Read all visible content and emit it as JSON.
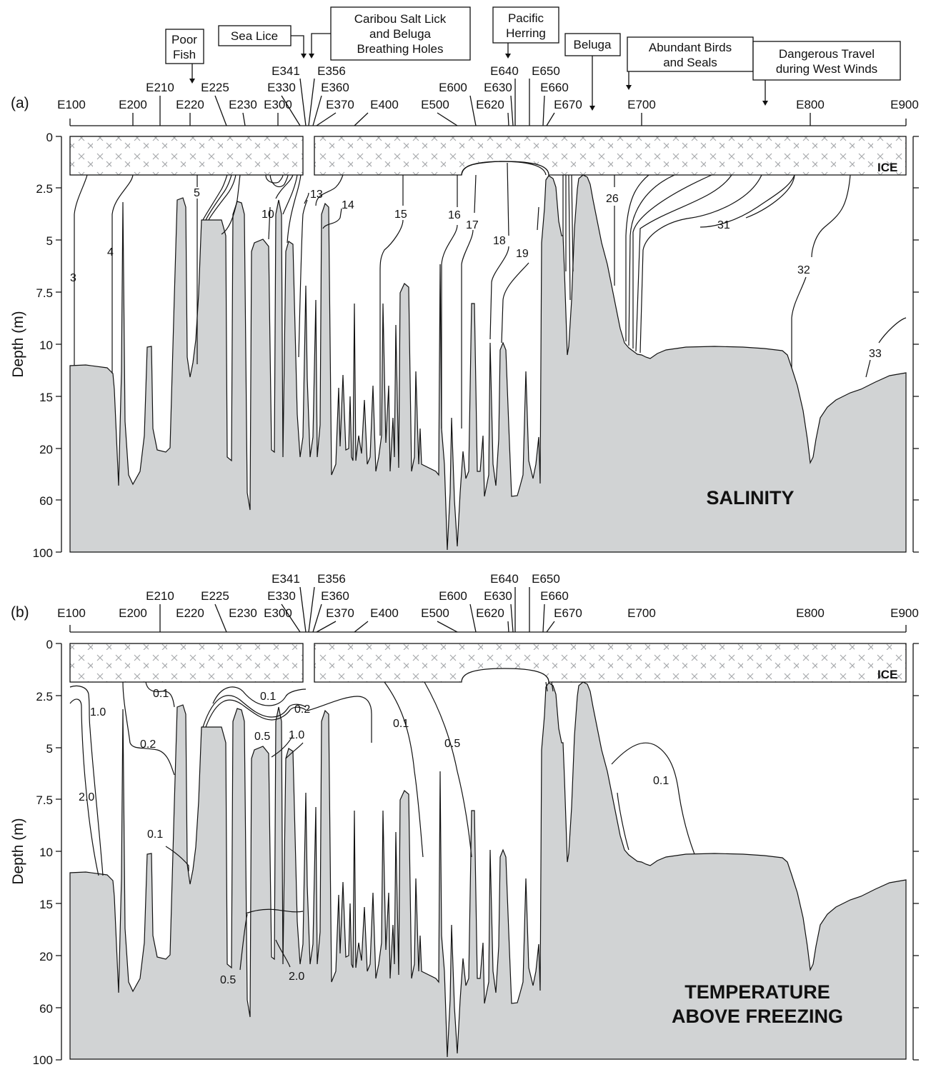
{
  "figure": {
    "stations_upper": [
      "E100",
      "E200",
      "E210",
      "E220",
      "E225",
      "E230",
      "E300",
      "E330",
      "E341",
      "E356",
      "E360",
      "E370",
      "E400",
      "E500",
      "E600",
      "E620",
      "E630",
      "E640",
      "E650",
      "E660",
      "E670",
      "E700",
      "E800",
      "E900"
    ],
    "stations_lower": [
      "E100",
      "E200",
      "E210",
      "E220",
      "E225",
      "E230",
      "E300",
      "E330",
      "E341",
      "E356",
      "E360",
      "E370",
      "E400",
      "E500",
      "E600",
      "E620",
      "E630",
      "E640",
      "E650",
      "E660",
      "E670",
      "E700",
      "E800",
      "E900"
    ],
    "y_ticks": [
      "0",
      "2.5",
      "5",
      "7.5",
      "10",
      "15",
      "20",
      "60",
      "100"
    ],
    "ylabel": "Depth (m)",
    "ice_label": "ICE",
    "colors": {
      "seafloor": "#d1d3d4",
      "line": "#111111",
      "ice_x": "#a7a9ac"
    }
  },
  "chart_data": [
    {
      "type": "contour-section",
      "panel": "(a)",
      "title": "SALINITY",
      "ylabel": "Depth (m)",
      "stations": [
        "E100",
        "E200",
        "E210",
        "E220",
        "E225",
        "E230",
        "E300",
        "E330",
        "E341",
        "E356",
        "E360",
        "E370",
        "E400",
        "E500",
        "E600",
        "E620",
        "E630",
        "E640",
        "E650",
        "E660",
        "E670",
        "E700",
        "E800",
        "E900"
      ],
      "depth_ticks": [
        0,
        2.5,
        5,
        7.5,
        10,
        15,
        20,
        60,
        100
      ],
      "contour_labels": [
        "3",
        "4",
        "5",
        "10",
        "13",
        "14",
        "15",
        "16",
        "17",
        "18",
        "19",
        "26",
        "31",
        "32",
        "33"
      ],
      "annotations": [
        "Poor Fish",
        "Sea Lice",
        "Caribou Salt Lick and Beluga Breathing Holes",
        "Pacific Herring",
        "Beluga",
        "Abundant Birds and Seals",
        "Dangerous Travel during West Winds"
      ]
    },
    {
      "type": "contour-section",
      "panel": "(b)",
      "title": "TEMPERATURE ABOVE FREEZING",
      "ylabel": "Depth (m)",
      "stations": [
        "E100",
        "E200",
        "E210",
        "E220",
        "E225",
        "E230",
        "E300",
        "E330",
        "E341",
        "E356",
        "E360",
        "E370",
        "E400",
        "E500",
        "E600",
        "E620",
        "E630",
        "E640",
        "E650",
        "E660",
        "E670",
        "E700",
        "E800",
        "E900"
      ],
      "depth_ticks": [
        0,
        2.5,
        5,
        7.5,
        10,
        15,
        20,
        60,
        100
      ],
      "contour_labels": [
        "0.1",
        "0.1",
        "0.1",
        "0.1",
        "0.1",
        "0.2",
        "0.2",
        "0.5",
        "0.5",
        "0.5",
        "1.0",
        "1.0",
        "2.0",
        "2.0"
      ]
    }
  ],
  "panel_a": {
    "letter": "(a)",
    "title": "SALINITY",
    "stations": {
      "E100": "E100",
      "E200": "E200",
      "E210": "E210",
      "E220": "E220",
      "E225": "E225",
      "E230": "E230",
      "E300": "E300",
      "E330": "E330",
      "E341": "E341",
      "E356": "E356",
      "E360": "E360",
      "E370": "E370",
      "E400": "E400",
      "E500": "E500",
      "E600": "E600",
      "E620": "E620",
      "E630": "E630",
      "E640": "E640",
      "E650": "E650",
      "E660": "E660",
      "E670": "E670",
      "E700": "E700",
      "E800": "E800",
      "E900": "E900"
    },
    "labels": {
      "s3": "3",
      "s4": "4",
      "s5": "5",
      "s10": "10",
      "s13": "13",
      "s14": "14",
      "s15": "15",
      "s16": "16",
      "s17": "17",
      "s18": "18",
      "s19": "19",
      "s26": "26",
      "s31": "31",
      "s32": "32",
      "s33": "33"
    },
    "annotations": {
      "poor_fish_1": "Poor",
      "poor_fish_2": "Fish",
      "sea_lice": "Sea Lice",
      "caribou_1": "Caribou Salt Lick",
      "caribou_2": "and Beluga",
      "caribou_3": "Breathing Holes",
      "herring_1": "Pacific",
      "herring_2": "Herring",
      "beluga": "Beluga",
      "birds_1": "Abundant Birds",
      "birds_2": "and Seals",
      "travel_1": "Dangerous Travel",
      "travel_2": "during West Winds"
    }
  },
  "panel_b": {
    "letter": "(b)",
    "title_1": "TEMPERATURE",
    "title_2": "ABOVE FREEZING",
    "stations": {
      "E100": "E100",
      "E200": "E200",
      "E210": "E210",
      "E220": "E220",
      "E225": "E225",
      "E230": "E230",
      "E300": "E300",
      "E330": "E330",
      "E341": "E341",
      "E356": "E356",
      "E360": "E360",
      "E370": "E370",
      "E400": "E400",
      "E500": "E500",
      "E600": "E600",
      "E620": "E620",
      "E630": "E630",
      "E640": "E640",
      "E650": "E650",
      "E660": "E660",
      "E670": "E670",
      "E700": "E700",
      "E800": "E800",
      "E900": "E900"
    },
    "labels": {
      "t10a": "1.0",
      "t20a": "2.0",
      "t01a": "0.1",
      "t02a": "0.2",
      "t01b": "0.1",
      "t01c": "0.1",
      "t02b": "0.2",
      "t05a": "0.5",
      "t10b": "1.0",
      "t01d": "0.1",
      "t05b": "0.5",
      "t01e": "0.1",
      "t05c": "0.5",
      "t20b": "2.0"
    }
  }
}
